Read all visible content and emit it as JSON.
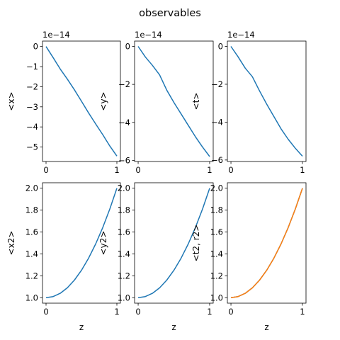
{
  "figure": {
    "title": "observables"
  },
  "colors": {
    "c0": "#1f77b4",
    "c1": "#ff7f0e"
  },
  "chart_data": [
    {
      "type": "line",
      "title": "",
      "xlabel": "z",
      "ylabel": "<x>",
      "scale_label": "1e−14",
      "xlim": [
        -0.05,
        1.05
      ],
      "ylim": [
        -5.72,
        0.27
      ],
      "xticks": [
        0,
        1
      ],
      "xtick_labels": [
        "0",
        "1"
      ],
      "yticks": [
        0,
        -1,
        -2,
        -3,
        -4,
        -5
      ],
      "ytick_labels": [
        "0",
        "−1",
        "−2",
        "−3",
        "−4",
        "−5"
      ],
      "series": [
        {
          "name": "<x>",
          "color": "#1f77b4",
          "x": [
            0,
            0.1,
            0.2,
            0.3,
            0.4,
            0.5,
            0.6,
            0.7,
            0.8,
            0.9,
            1.0
          ],
          "y": [
            0,
            -0.55,
            -1.12,
            -1.62,
            -2.15,
            -2.72,
            -3.3,
            -3.85,
            -4.38,
            -4.95,
            -5.45
          ]
        }
      ]
    },
    {
      "type": "line",
      "title": "",
      "xlabel": "z",
      "ylabel": "<y>",
      "scale_label": "1e−14",
      "xlim": [
        -0.05,
        1.05
      ],
      "ylim": [
        -6.06,
        0.28
      ],
      "xticks": [
        0,
        1
      ],
      "xtick_labels": [
        "0",
        "1"
      ],
      "yticks": [
        0,
        -2,
        -4,
        -6
      ],
      "ytick_labels": [
        "0",
        "−2",
        "−4",
        "−6"
      ],
      "series": [
        {
          "name": "<y>",
          "color": "#1f77b4",
          "x": [
            0,
            0.1,
            0.2,
            0.3,
            0.4,
            0.5,
            0.6,
            0.7,
            0.8,
            0.9,
            1.0
          ],
          "y": [
            0,
            -0.55,
            -1.0,
            -1.5,
            -2.3,
            -2.95,
            -3.55,
            -4.15,
            -4.75,
            -5.3,
            -5.8
          ]
        }
      ]
    },
    {
      "type": "line",
      "title": "",
      "xlabel": "z",
      "ylabel": "<t>",
      "scale_label": "1e−14",
      "xlim": [
        -0.05,
        1.05
      ],
      "ylim": [
        -6.08,
        0.28
      ],
      "xticks": [
        0,
        1
      ],
      "xtick_labels": [
        "0",
        "1"
      ],
      "yticks": [
        0,
        -2,
        -4,
        -6
      ],
      "ytick_labels": [
        "0",
        "−2",
        "−4",
        "−6"
      ],
      "series": [
        {
          "name": "<t>",
          "color": "#1f77b4",
          "x": [
            0,
            0.1,
            0.2,
            0.3,
            0.4,
            0.5,
            0.6,
            0.7,
            0.8,
            0.9,
            1.0
          ],
          "y": [
            0,
            -0.55,
            -1.15,
            -1.6,
            -2.35,
            -3.05,
            -3.7,
            -4.35,
            -4.9,
            -5.38,
            -5.8
          ]
        }
      ]
    },
    {
      "type": "line",
      "title": "",
      "xlabel": "z",
      "ylabel": "<x2>",
      "scale_label": "",
      "xlim": [
        -0.05,
        1.05
      ],
      "ylim": [
        0.95,
        2.05
      ],
      "xticks": [
        0,
        1
      ],
      "xtick_labels": [
        "0",
        "1"
      ],
      "yticks": [
        1.0,
        1.2,
        1.4,
        1.6,
        1.8,
        2.0
      ],
      "ytick_labels": [
        "1.0",
        "1.2",
        "1.4",
        "1.6",
        "1.8",
        "2.0"
      ],
      "series": [
        {
          "name": "<x2>",
          "color": "#1f77b4",
          "x": [
            0,
            0.1,
            0.2,
            0.3,
            0.4,
            0.5,
            0.6,
            0.7,
            0.8,
            0.9,
            1.0
          ],
          "y": [
            1.0,
            1.01,
            1.04,
            1.09,
            1.16,
            1.25,
            1.36,
            1.49,
            1.64,
            1.81,
            2.0
          ]
        }
      ]
    },
    {
      "type": "line",
      "title": "",
      "xlabel": "z",
      "ylabel": "<y2>",
      "scale_label": "",
      "xlim": [
        -0.05,
        1.05
      ],
      "ylim": [
        0.95,
        2.05
      ],
      "xticks": [
        0,
        1
      ],
      "xtick_labels": [
        "0",
        "1"
      ],
      "yticks": [
        1.0,
        1.2,
        1.4,
        1.6,
        1.8,
        2.0
      ],
      "ytick_labels": [
        "1.0",
        "1.2",
        "1.4",
        "1.6",
        "1.8",
        "2.0"
      ],
      "series": [
        {
          "name": "<y2>",
          "color": "#1f77b4",
          "x": [
            0,
            0.1,
            0.2,
            0.3,
            0.4,
            0.5,
            0.6,
            0.7,
            0.8,
            0.9,
            1.0
          ],
          "y": [
            1.0,
            1.01,
            1.04,
            1.09,
            1.16,
            1.25,
            1.36,
            1.49,
            1.64,
            1.81,
            2.0
          ]
        }
      ]
    },
    {
      "type": "line",
      "title": "",
      "xlabel": "z",
      "ylabel": "<t2, r2>",
      "scale_label": "",
      "xlim": [
        -0.05,
        1.05
      ],
      "ylim": [
        0.95,
        2.05
      ],
      "xticks": [
        0,
        1
      ],
      "xtick_labels": [
        "0",
        "1"
      ],
      "yticks": [
        1.0,
        1.2,
        1.4,
        1.6,
        1.8,
        2.0
      ],
      "ytick_labels": [
        "1.0",
        "1.2",
        "1.4",
        "1.6",
        "1.8",
        "2.0"
      ],
      "series": [
        {
          "name": "<t2>",
          "color": "#1f77b4",
          "x": [
            0,
            0.1,
            0.2,
            0.3,
            0.4,
            0.5,
            0.6,
            0.7,
            0.8,
            0.9,
            1.0
          ],
          "y": [
            1.0,
            1.01,
            1.04,
            1.09,
            1.16,
            1.25,
            1.36,
            1.49,
            1.64,
            1.81,
            2.0
          ]
        },
        {
          "name": "<r2>",
          "color": "#ff7f0e",
          "x": [
            0,
            0.1,
            0.2,
            0.3,
            0.4,
            0.5,
            0.6,
            0.7,
            0.8,
            0.9,
            1.0
          ],
          "y": [
            1.0,
            1.01,
            1.04,
            1.09,
            1.16,
            1.25,
            1.36,
            1.49,
            1.64,
            1.81,
            2.0
          ]
        }
      ]
    }
  ]
}
